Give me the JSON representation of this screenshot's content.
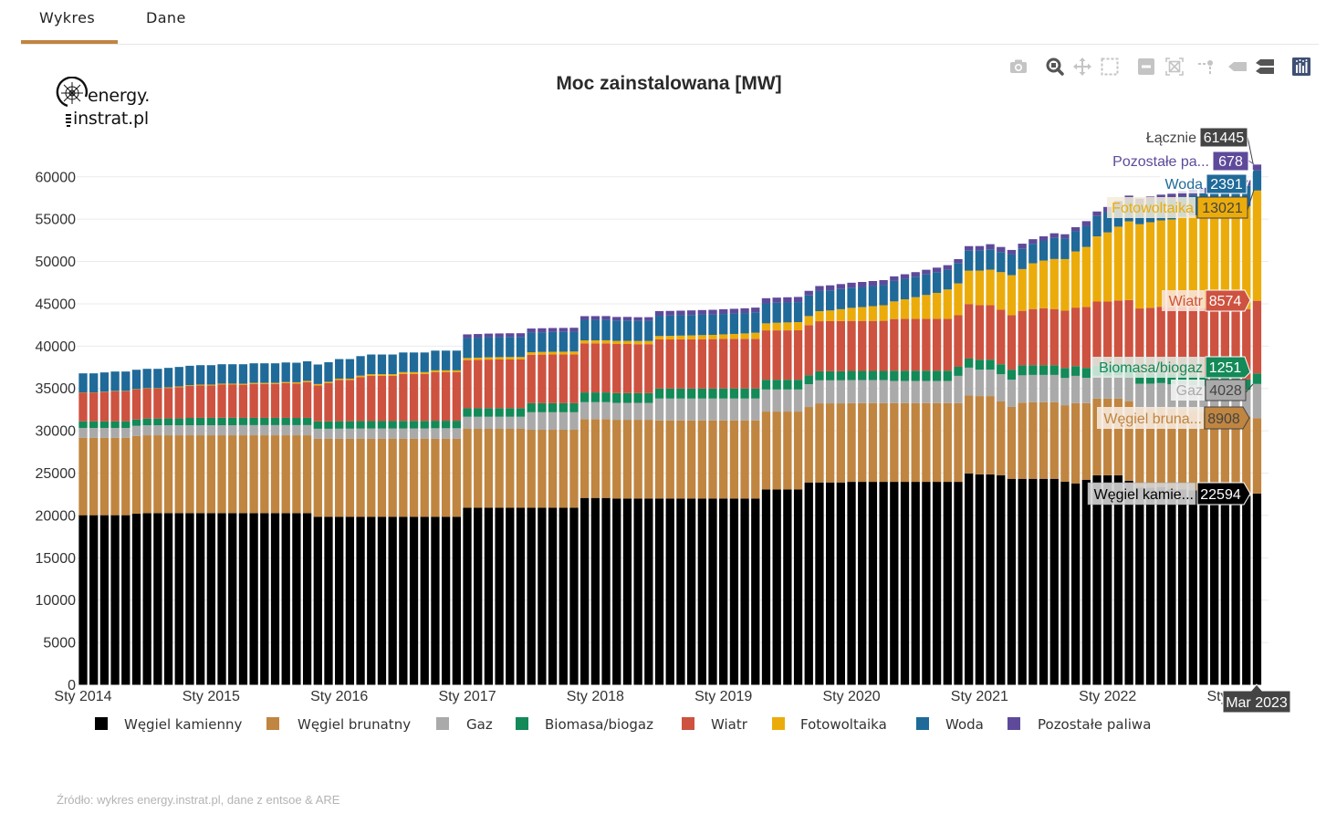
{
  "tabs": [
    {
      "label": "Wykres",
      "active": true
    },
    {
      "label": "Dane",
      "active": false
    }
  ],
  "logo": {
    "line1": "energy.",
    "line2": "instrat.pl"
  },
  "modebar": [
    {
      "icon": "camera-icon",
      "active": false
    },
    {
      "icon": "zoom-icon",
      "active": true
    },
    {
      "icon": "pan-icon",
      "active": false
    },
    {
      "icon": "box-select-icon",
      "active": false
    },
    {
      "icon": "zoom-out-icon",
      "active": false
    },
    {
      "icon": "autoscale-icon",
      "active": false
    },
    {
      "icon": "spikelines-icon",
      "active": false
    },
    {
      "icon": "hover-closest-icon",
      "active": false
    },
    {
      "icon": "hover-compare-icon",
      "active": true
    },
    {
      "icon": "plotly-logo-icon",
      "active": false
    }
  ],
  "chart_data": {
    "type": "bar",
    "stacked": true,
    "title": "Moc zainstalowana [MW]",
    "xlabel": "",
    "ylabel": "",
    "ylim": [
      0,
      64500
    ],
    "grid": true,
    "legend_position": "bottom",
    "y_ticks": [
      0,
      5000,
      10000,
      15000,
      20000,
      25000,
      30000,
      35000,
      40000,
      45000,
      50000,
      55000,
      60000
    ],
    "x_tick_labels": [
      {
        "x": "2014-01",
        "label": "Sty 2014"
      },
      {
        "x": "2015-01",
        "label": "Sty 2015"
      },
      {
        "x": "2016-01",
        "label": "Sty 2016"
      },
      {
        "x": "2017-01",
        "label": "Sty 2017"
      },
      {
        "x": "2018-01",
        "label": "Sty 2018"
      },
      {
        "x": "2019-01",
        "label": "Sty 2019"
      },
      {
        "x": "2020-01",
        "label": "Sty 2020"
      },
      {
        "x": "2021-01",
        "label": "Sty 2021"
      },
      {
        "x": "2022-01",
        "label": "Sty 2022"
      },
      {
        "x": "2023-01",
        "label": "Sty 2023"
      }
    ],
    "x": [
      "2014-01",
      "2014-02",
      "2014-03",
      "2014-04",
      "2014-05",
      "2014-06",
      "2014-07",
      "2014-08",
      "2014-09",
      "2014-10",
      "2014-11",
      "2014-12",
      "2015-01",
      "2015-02",
      "2015-03",
      "2015-04",
      "2015-05",
      "2015-06",
      "2015-07",
      "2015-08",
      "2015-09",
      "2015-10",
      "2015-11",
      "2015-12",
      "2016-01",
      "2016-02",
      "2016-03",
      "2016-04",
      "2016-05",
      "2016-06",
      "2016-07",
      "2016-08",
      "2016-09",
      "2016-10",
      "2016-11",
      "2016-12",
      "2017-01",
      "2017-02",
      "2017-03",
      "2017-04",
      "2017-05",
      "2017-06",
      "2017-07",
      "2017-08",
      "2017-09",
      "2017-10",
      "2017-11",
      "2017-12",
      "2018-01",
      "2018-02",
      "2018-03",
      "2018-04",
      "2018-05",
      "2018-06",
      "2018-07",
      "2018-08",
      "2018-09",
      "2018-10",
      "2018-11",
      "2018-12",
      "2019-01",
      "2019-02",
      "2019-03",
      "2019-04",
      "2019-05",
      "2019-06",
      "2019-07",
      "2019-08",
      "2019-09",
      "2019-10",
      "2019-11",
      "2019-12",
      "2020-01",
      "2020-02",
      "2020-03",
      "2020-04",
      "2020-05",
      "2020-06",
      "2020-07",
      "2020-08",
      "2020-09",
      "2020-10",
      "2020-11",
      "2020-12",
      "2021-01",
      "2021-02",
      "2021-03",
      "2021-04",
      "2021-05",
      "2021-06",
      "2021-07",
      "2021-08",
      "2021-09",
      "2021-10",
      "2021-11",
      "2021-12",
      "2022-01",
      "2022-02",
      "2022-03",
      "2022-04",
      "2022-05",
      "2022-06",
      "2022-07",
      "2022-08",
      "2022-09",
      "2022-10",
      "2022-11",
      "2022-12",
      "2023-01",
      "2023-02",
      "2023-03"
    ],
    "series": [
      {
        "name": "Węgiel kamienny",
        "color": "#000000",
        "values": [
          20030,
          20030,
          20030,
          20030,
          20030,
          20210,
          20280,
          20280,
          20280,
          20280,
          20280,
          20280,
          20280,
          20280,
          20280,
          20280,
          20280,
          20280,
          20280,
          20280,
          20280,
          20280,
          19850,
          19850,
          19850,
          19850,
          19850,
          19850,
          19850,
          19850,
          19850,
          19850,
          19850,
          19850,
          19850,
          19850,
          20920,
          20920,
          20920,
          20920,
          20920,
          20920,
          20920,
          20920,
          20920,
          20920,
          20920,
          22070,
          22070,
          22070,
          21990,
          21990,
          21990,
          21990,
          21990,
          21990,
          21990,
          21990,
          21990,
          21990,
          21990,
          21990,
          21990,
          21990,
          23070,
          23070,
          23070,
          23070,
          23900,
          23900,
          23900,
          23900,
          23970,
          23970,
          23970,
          23970,
          23970,
          23970,
          23970,
          23970,
          23970,
          23970,
          23970,
          24970,
          24860,
          24860,
          24760,
          24330,
          24330,
          24330,
          24330,
          24330,
          24000,
          23790,
          24220,
          24750,
          24750,
          24750,
          24100,
          23300,
          23270,
          23340,
          23140,
          23090,
          22970,
          22820,
          22710,
          22550,
          22450,
          22290,
          22594
        ]
      },
      {
        "name": "Węgiel brunatny",
        "color": "#c08540",
        "values": [
          9130,
          9130,
          9130,
          9130,
          9130,
          9190,
          9190,
          9190,
          9190,
          9190,
          9190,
          9190,
          9190,
          9190,
          9190,
          9190,
          9190,
          9190,
          9190,
          9190,
          9190,
          9190,
          9200,
          9200,
          9200,
          9200,
          9200,
          9200,
          9200,
          9200,
          9200,
          9200,
          9200,
          9200,
          9200,
          9200,
          9310,
          9310,
          9310,
          9310,
          9310,
          9310,
          9200,
          9200,
          9200,
          9200,
          9200,
          9310,
          9310,
          9310,
          9310,
          9310,
          9310,
          9310,
          9240,
          9240,
          9240,
          9240,
          9240,
          9240,
          9240,
          9240,
          9240,
          9240,
          9200,
          9200,
          9200,
          9200,
          8910,
          9340,
          9340,
          9340,
          9300,
          9300,
          9300,
          9300,
          9300,
          9300,
          9300,
          9300,
          9300,
          9300,
          9300,
          9200,
          9240,
          9240,
          8700,
          8490,
          9000,
          9050,
          9050,
          9050,
          9020,
          9480,
          9050,
          9054,
          9054,
          9050,
          9400,
          9400,
          9400,
          9400,
          9400,
          9400,
          9400,
          9400,
          9400,
          9400,
          9400,
          9400,
          8908
        ]
      },
      {
        "name": "Gaz",
        "color": "#aaaaaa",
        "values": [
          1180,
          1180,
          1180,
          1180,
          1180,
          1180,
          1180,
          1180,
          1180,
          1180,
          1190,
          1190,
          1190,
          1190,
          1190,
          1200,
          1200,
          1200,
          1200,
          1200,
          1200,
          1200,
          1190,
          1190,
          1200,
          1200,
          1210,
          1220,
          1220,
          1220,
          1230,
          1230,
          1230,
          1250,
          1250,
          1250,
          1430,
          1430,
          1430,
          1430,
          1430,
          1430,
          2070,
          2070,
          2070,
          2070,
          2070,
          2000,
          2000,
          2000,
          2000,
          2000,
          2000,
          2000,
          2580,
          2580,
          2580,
          2580,
          2580,
          2580,
          2580,
          2580,
          2580,
          2580,
          2610,
          2610,
          2610,
          2610,
          2690,
          2720,
          2720,
          2720,
          2720,
          2720,
          2720,
          2720,
          2620,
          2620,
          2620,
          2620,
          2620,
          2620,
          3220,
          3290,
          3120,
          3120,
          3220,
          3220,
          3220,
          3220,
          3220,
          3220,
          3220,
          3220,
          2980,
          2700,
          2700,
          2750,
          2800,
          2850,
          2900,
          2900,
          2950,
          3000,
          3000,
          3050,
          3050,
          3100,
          3100,
          3150,
          4028
        ]
      },
      {
        "name": "Biomasa/biogaz",
        "color": "#138a58",
        "values": [
          780,
          780,
          780,
          780,
          780,
          760,
          800,
          800,
          810,
          810,
          860,
          870,
          870,
          880,
          880,
          860,
          860,
          860,
          860,
          860,
          850,
          860,
          870,
          870,
          880,
          880,
          880,
          880,
          880,
          880,
          890,
          890,
          890,
          890,
          890,
          890,
          1000,
          1000,
          1010,
          1010,
          1010,
          1010,
          1070,
          1070,
          1070,
          1070,
          1070,
          1150,
          1150,
          1150,
          1150,
          1150,
          1150,
          1150,
          1180,
          1180,
          1180,
          1180,
          1180,
          1180,
          1190,
          1190,
          1190,
          1190,
          1150,
          1150,
          1150,
          1150,
          1070,
          1070,
          1070,
          1070,
          1080,
          1080,
          1080,
          1080,
          1210,
          1210,
          1210,
          1210,
          1210,
          1210,
          1070,
          1070,
          1180,
          1180,
          1180,
          1180,
          1180,
          1150,
          1150,
          1150,
          1180,
          1150,
          1180,
          1190,
          1190,
          1190,
          1200,
          1200,
          1210,
          1210,
          1220,
          1220,
          1230,
          1230,
          1240,
          1240,
          1240,
          1245,
          1251
        ]
      },
      {
        "name": "Wiatr",
        "color": "#cd5240",
        "values": [
          3400,
          3400,
          3470,
          3560,
          3560,
          3540,
          3520,
          3520,
          3600,
          3700,
          3770,
          3830,
          3830,
          3920,
          3920,
          3910,
          4010,
          4010,
          4010,
          4100,
          4070,
          4220,
          4250,
          4520,
          4860,
          4860,
          5190,
          5350,
          5350,
          5350,
          5550,
          5550,
          5550,
          5720,
          5720,
          5720,
          5690,
          5720,
          5740,
          5750,
          5750,
          5750,
          5720,
          5740,
          5750,
          5750,
          5760,
          5800,
          5800,
          5800,
          5800,
          5800,
          5780,
          5780,
          5800,
          5800,
          5810,
          5820,
          5830,
          5840,
          5850,
          5860,
          5860,
          5860,
          5830,
          5830,
          5830,
          5840,
          5910,
          5910,
          5920,
          5930,
          5910,
          5910,
          5910,
          5920,
          6100,
          6120,
          6120,
          6120,
          6120,
          6120,
          6090,
          6440,
          6440,
          6440,
          6440,
          6440,
          6440,
          6630,
          6730,
          6630,
          6770,
          6910,
          7200,
          7568,
          7575,
          7640,
          7940,
          7700,
          7750,
          7800,
          7850,
          7900,
          7950,
          8000,
          8050,
          8100,
          8200,
          8300,
          8574
        ]
      },
      {
        "name": "Fotowoltaika",
        "color": "#ebac0b",
        "values": [
          10,
          10,
          25,
          30,
          30,
          40,
          60,
          60,
          70,
          80,
          90,
          100,
          100,
          110,
          110,
          120,
          120,
          120,
          120,
          130,
          140,
          150,
          160,
          160,
          170,
          170,
          180,
          190,
          190,
          190,
          210,
          210,
          210,
          230,
          230,
          230,
          250,
          260,
          270,
          280,
          290,
          295,
          300,
          310,
          320,
          330,
          340,
          350,
          355,
          360,
          365,
          370,
          375,
          380,
          400,
          420,
          440,
          460,
          480,
          500,
          540,
          580,
          640,
          720,
          830,
          900,
          940,
          970,
          1070,
          1190,
          1260,
          1400,
          1540,
          1630,
          1740,
          1840,
          2080,
          2310,
          2560,
          2820,
          3070,
          3470,
          3760,
          3940,
          4080,
          4190,
          4440,
          4720,
          4930,
          5400,
          5620,
          5910,
          6090,
          6630,
          7090,
          7700,
          8160,
          8730,
          9300,
          9950,
          10100,
          10200,
          10400,
          10650,
          10900,
          11150,
          11400,
          11650,
          11900,
          12150,
          13021
        ]
      },
      {
        "name": "Woda",
        "color": "#1f6a98",
        "values": [
          2255,
          2255,
          2280,
          2290,
          2290,
          2290,
          2290,
          2290,
          2300,
          2300,
          2300,
          2290,
          2290,
          2290,
          2290,
          2300,
          2310,
          2310,
          2310,
          2310,
          2310,
          2310,
          2310,
          2310,
          2310,
          2310,
          2310,
          2320,
          2320,
          2320,
          2320,
          2320,
          2320,
          2330,
          2330,
          2330,
          2360,
          2360,
          2370,
          2370,
          2380,
          2380,
          2330,
          2330,
          2340,
          2340,
          2340,
          2430,
          2430,
          2430,
          2400,
          2400,
          2380,
          2380,
          2400,
          2400,
          2400,
          2400,
          2410,
          2410,
          2410,
          2410,
          2410,
          2410,
          2360,
          2360,
          2360,
          2360,
          2440,
          2380,
          2380,
          2380,
          2380,
          2380,
          2380,
          2380,
          2420,
          2420,
          2420,
          2440,
          2440,
          2330,
          2400,
          2360,
          2360,
          2400,
          2360,
          2440,
          2390,
          2310,
          2330,
          2500,
          2430,
          2390,
          2440,
          2400,
          2400,
          2410,
          2410,
          2400,
          2400,
          2400,
          2390,
          2390,
          2390,
          2390,
          2390,
          2390,
          2390,
          2390,
          2391
        ]
      },
      {
        "name": "Pozostałe paliwa",
        "color": "#5e4a9a",
        "values": [
          0,
          0,
          0,
          0,
          0,
          0,
          0,
          0,
          0,
          0,
          0,
          0,
          0,
          0,
          0,
          0,
          0,
          0,
          0,
          0,
          0,
          0,
          0,
          0,
          0,
          0,
          0,
          0,
          0,
          0,
          0,
          0,
          0,
          0,
          0,
          0,
          430,
          430,
          430,
          430,
          430,
          430,
          470,
          470,
          470,
          470,
          470,
          430,
          430,
          430,
          430,
          430,
          430,
          430,
          550,
          550,
          550,
          550,
          550,
          550,
          560,
          560,
          560,
          560,
          610,
          610,
          610,
          610,
          540,
          590,
          590,
          590,
          590,
          590,
          590,
          590,
          540,
          540,
          540,
          540,
          540,
          540,
          470,
          540,
          540,
          610,
          610,
          540,
          610,
          540,
          540,
          540,
          505,
          475,
          600,
          540,
          610,
          620,
          630,
          630,
          640,
          640,
          650,
          650,
          660,
          660,
          660,
          670,
          670,
          675,
          678
        ]
      }
    ],
    "hover": {
      "x_label": "Mar 2023",
      "items": [
        {
          "name": "Łącznie",
          "value": "61445"
        },
        {
          "name": "Pozostałe pa...",
          "value": "678"
        },
        {
          "name": "Woda",
          "value": "2391"
        },
        {
          "name": "Fotowoltaika",
          "value": "13021"
        },
        {
          "name": "Wiatr",
          "value": "8574"
        },
        {
          "name": "Biomasa/biogaz",
          "value": "1251"
        },
        {
          "name": "Gaz",
          "value": "4028"
        },
        {
          "name": "Węgiel bruna...",
          "value": "8908"
        },
        {
          "name": "Węgiel kamie...",
          "value": "22594"
        }
      ]
    }
  },
  "source": "Źródło: wykres energy.instrat.pl, dane z entsoe & ARE"
}
